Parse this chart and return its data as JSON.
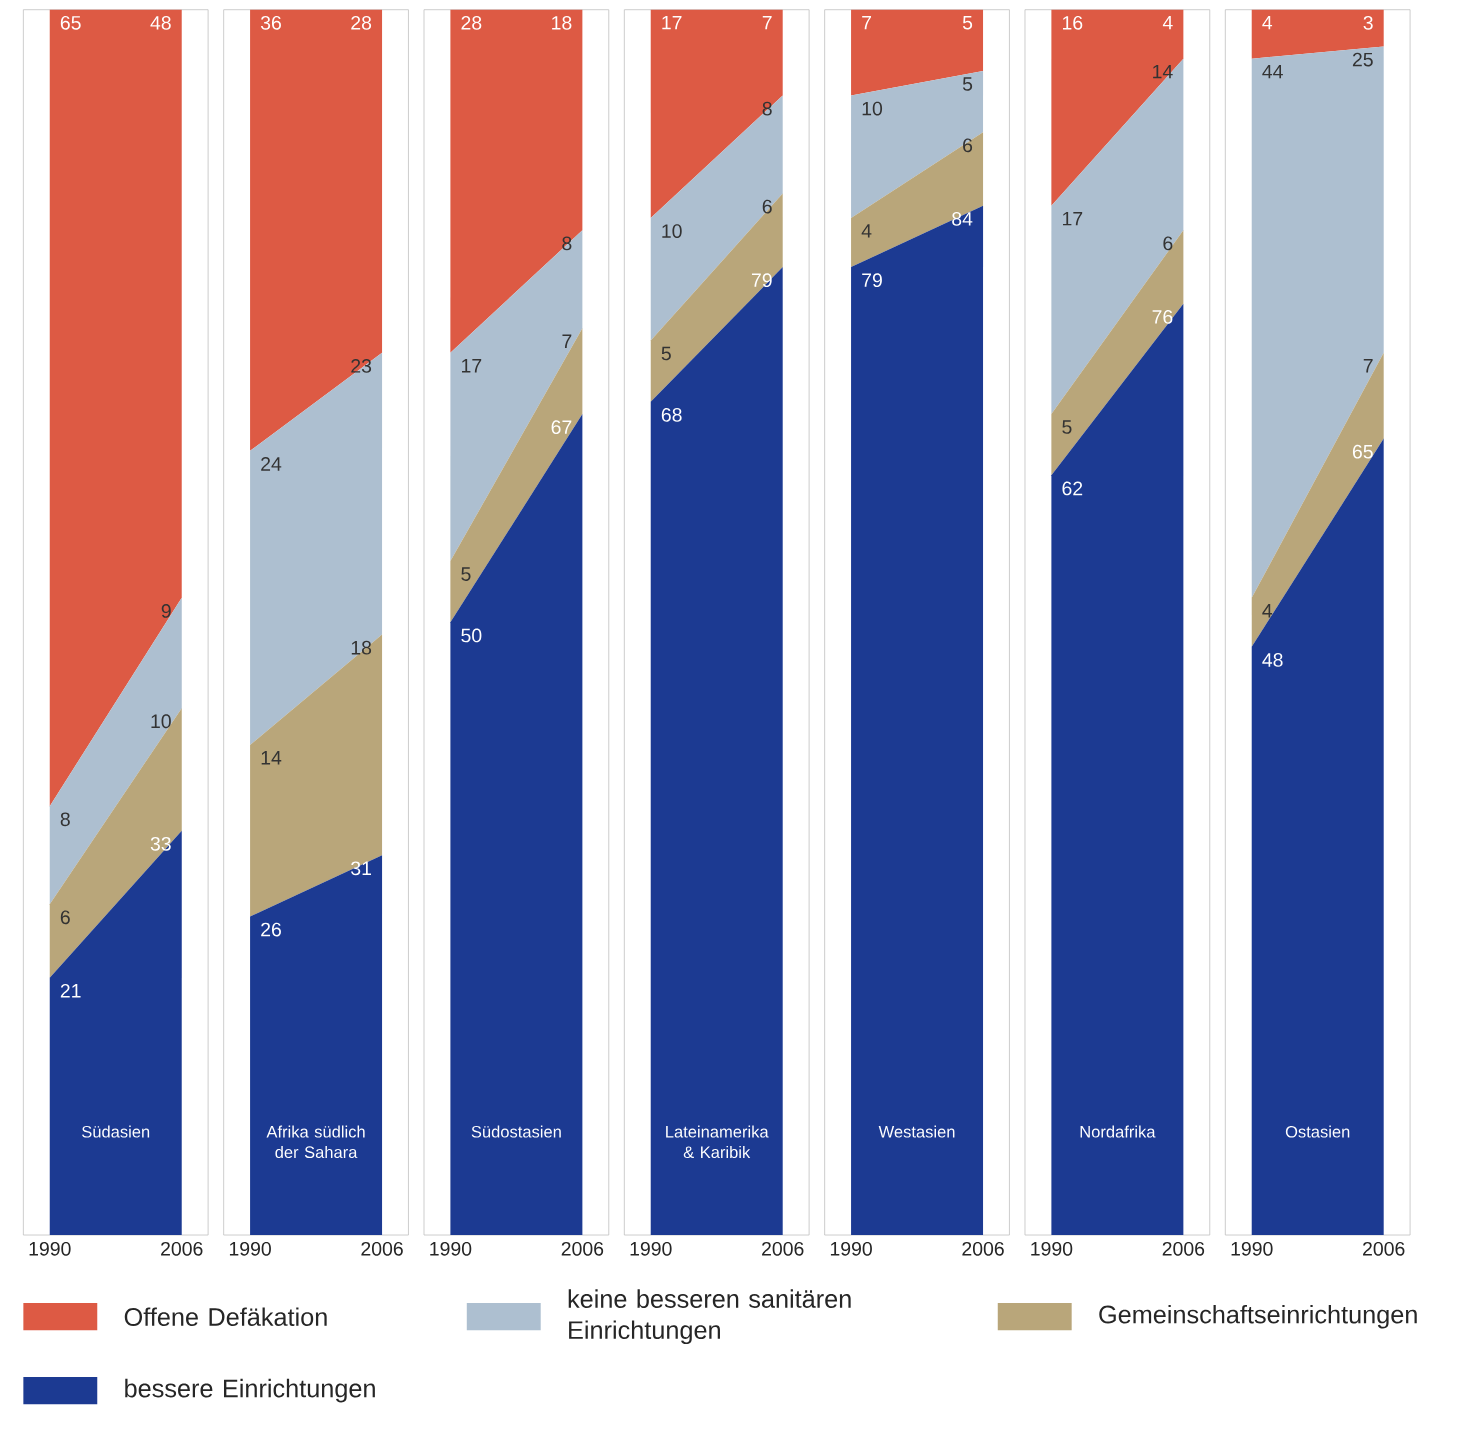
{
  "chart_data": [
    {
      "type": "area",
      "stacked": true,
      "title": "Südasien",
      "categories": [
        "1990",
        "2006"
      ],
      "ylim": [
        0,
        100
      ],
      "tick_labels": "x",
      "legend": "bottom",
      "series": [
        {
          "name": "bessere Einrichtungen",
          "color": "#1c3a92",
          "values": [
            21,
            33
          ],
          "value_labels": [
            "21",
            "33"
          ]
        },
        {
          "name": "Gemeinschaftseinrichtungen",
          "color": "#b9a67a",
          "values": [
            6,
            10
          ],
          "value_labels": [
            "6",
            "10"
          ]
        },
        {
          "name": "keine besseren sanitären Einrichtungen",
          "color": "#adbfd0",
          "values": [
            8,
            9
          ],
          "value_labels": [
            "8",
            "9"
          ]
        },
        {
          "name": "Offene Defäkation",
          "color": "#dd5a44",
          "values": [
            65,
            48
          ],
          "value_labels": [
            "65",
            "48"
          ]
        }
      ]
    },
    {
      "type": "area",
      "stacked": true,
      "title": "Afrika südlich der Sahara",
      "categories": [
        "1990",
        "2006"
      ],
      "ylim": [
        0,
        100
      ],
      "tick_labels": "x",
      "series": [
        {
          "color": "#1c3a92",
          "values": [
            26,
            31
          ],
          "value_labels": [
            "26",
            "31"
          ]
        },
        {
          "color": "#b9a67a",
          "values": [
            14,
            18
          ],
          "value_labels": [
            "14",
            "18"
          ]
        },
        {
          "color": "#adbfd0",
          "values": [
            24,
            23
          ],
          "value_labels": [
            "24",
            "23"
          ]
        },
        {
          "color": "#dd5a44",
          "values": [
            36,
            28
          ],
          "value_labels": [
            "36",
            "28"
          ]
        }
      ]
    },
    {
      "type": "area",
      "stacked": true,
      "title": "Südostasien",
      "categories": [
        "1990",
        "2006"
      ],
      "ylim": [
        0,
        100
      ],
      "tick_labels": "x",
      "series": [
        {
          "color": "#1c3a92",
          "values": [
            50,
            67
          ],
          "value_labels": [
            "50",
            "67"
          ]
        },
        {
          "color": "#b9a67a",
          "values": [
            5,
            7
          ],
          "value_labels": [
            "5",
            "7"
          ]
        },
        {
          "color": "#adbfd0",
          "values": [
            17,
            8
          ],
          "value_labels": [
            "17",
            "8"
          ]
        },
        {
          "color": "#dd5a44",
          "values": [
            28,
            18
          ],
          "value_labels": [
            "28",
            "18"
          ]
        }
      ]
    },
    {
      "type": "area",
      "stacked": true,
      "title": "Lateinamerika & Karibik",
      "categories": [
        "1990",
        "2006"
      ],
      "ylim": [
        0,
        100
      ],
      "tick_labels": "x",
      "series": [
        {
          "color": "#1c3a92",
          "values": [
            68,
            79
          ],
          "value_labels": [
            "68",
            "79"
          ]
        },
        {
          "color": "#b9a67a",
          "values": [
            5,
            6
          ],
          "value_labels": [
            "5",
            "6"
          ]
        },
        {
          "color": "#adbfd0",
          "values": [
            10,
            8
          ],
          "value_labels": [
            "10",
            "8"
          ]
        },
        {
          "color": "#dd5a44",
          "values": [
            17,
            7
          ],
          "value_labels": [
            "17",
            "7"
          ]
        }
      ]
    },
    {
      "type": "area",
      "stacked": true,
      "title": "Westasien",
      "categories": [
        "1990",
        "2006"
      ],
      "ylim": [
        0,
        100
      ],
      "tick_labels": "x",
      "series": [
        {
          "color": "#1c3a92",
          "values": [
            79,
            84
          ],
          "value_labels": [
            "79",
            "84"
          ]
        },
        {
          "color": "#b9a67a",
          "values": [
            4,
            6
          ],
          "value_labels": [
            "4",
            "6"
          ]
        },
        {
          "color": "#adbfd0",
          "values": [
            10,
            5
          ],
          "value_labels": [
            "10",
            "5"
          ]
        },
        {
          "color": "#dd5a44",
          "values": [
            7,
            5
          ],
          "value_labels": [
            "7",
            "5"
          ]
        }
      ]
    },
    {
      "type": "area",
      "stacked": true,
      "title": "Nordafrika",
      "categories": [
        "1990",
        "2006"
      ],
      "ylim": [
        0,
        100
      ],
      "tick_labels": "x",
      "series": [
        {
          "color": "#1c3a92",
          "values": [
            62,
            76
          ],
          "value_labels": [
            "62",
            "76"
          ]
        },
        {
          "color": "#b9a67a",
          "values": [
            5,
            6
          ],
          "value_labels": [
            "5",
            "6"
          ]
        },
        {
          "color": "#adbfd0",
          "values": [
            17,
            14
          ],
          "value_labels": [
            "17",
            "14"
          ]
        },
        {
          "color": "#dd5a44",
          "values": [
            16,
            4
          ],
          "value_labels": [
            "16",
            "4"
          ]
        }
      ]
    },
    {
      "type": "area",
      "stacked": true,
      "title": "Ostasien",
      "categories": [
        "1990",
        "2006"
      ],
      "ylim": [
        0,
        100
      ],
      "tick_labels": "x",
      "series": [
        {
          "color": "#1c3a92",
          "values": [
            48,
            65
          ],
          "value_labels": [
            "48",
            "65"
          ]
        },
        {
          "color": "#b9a67a",
          "values": [
            4,
            7
          ],
          "value_labels": [
            "4",
            "7"
          ]
        },
        {
          "color": "#adbfd0",
          "values": [
            44,
            25
          ],
          "value_labels": [
            "44",
            "25"
          ]
        },
        {
          "color": "#dd5a44",
          "values": [
            4,
            3
          ],
          "value_labels": [
            "4",
            "3"
          ]
        }
      ]
    }
  ]
}
